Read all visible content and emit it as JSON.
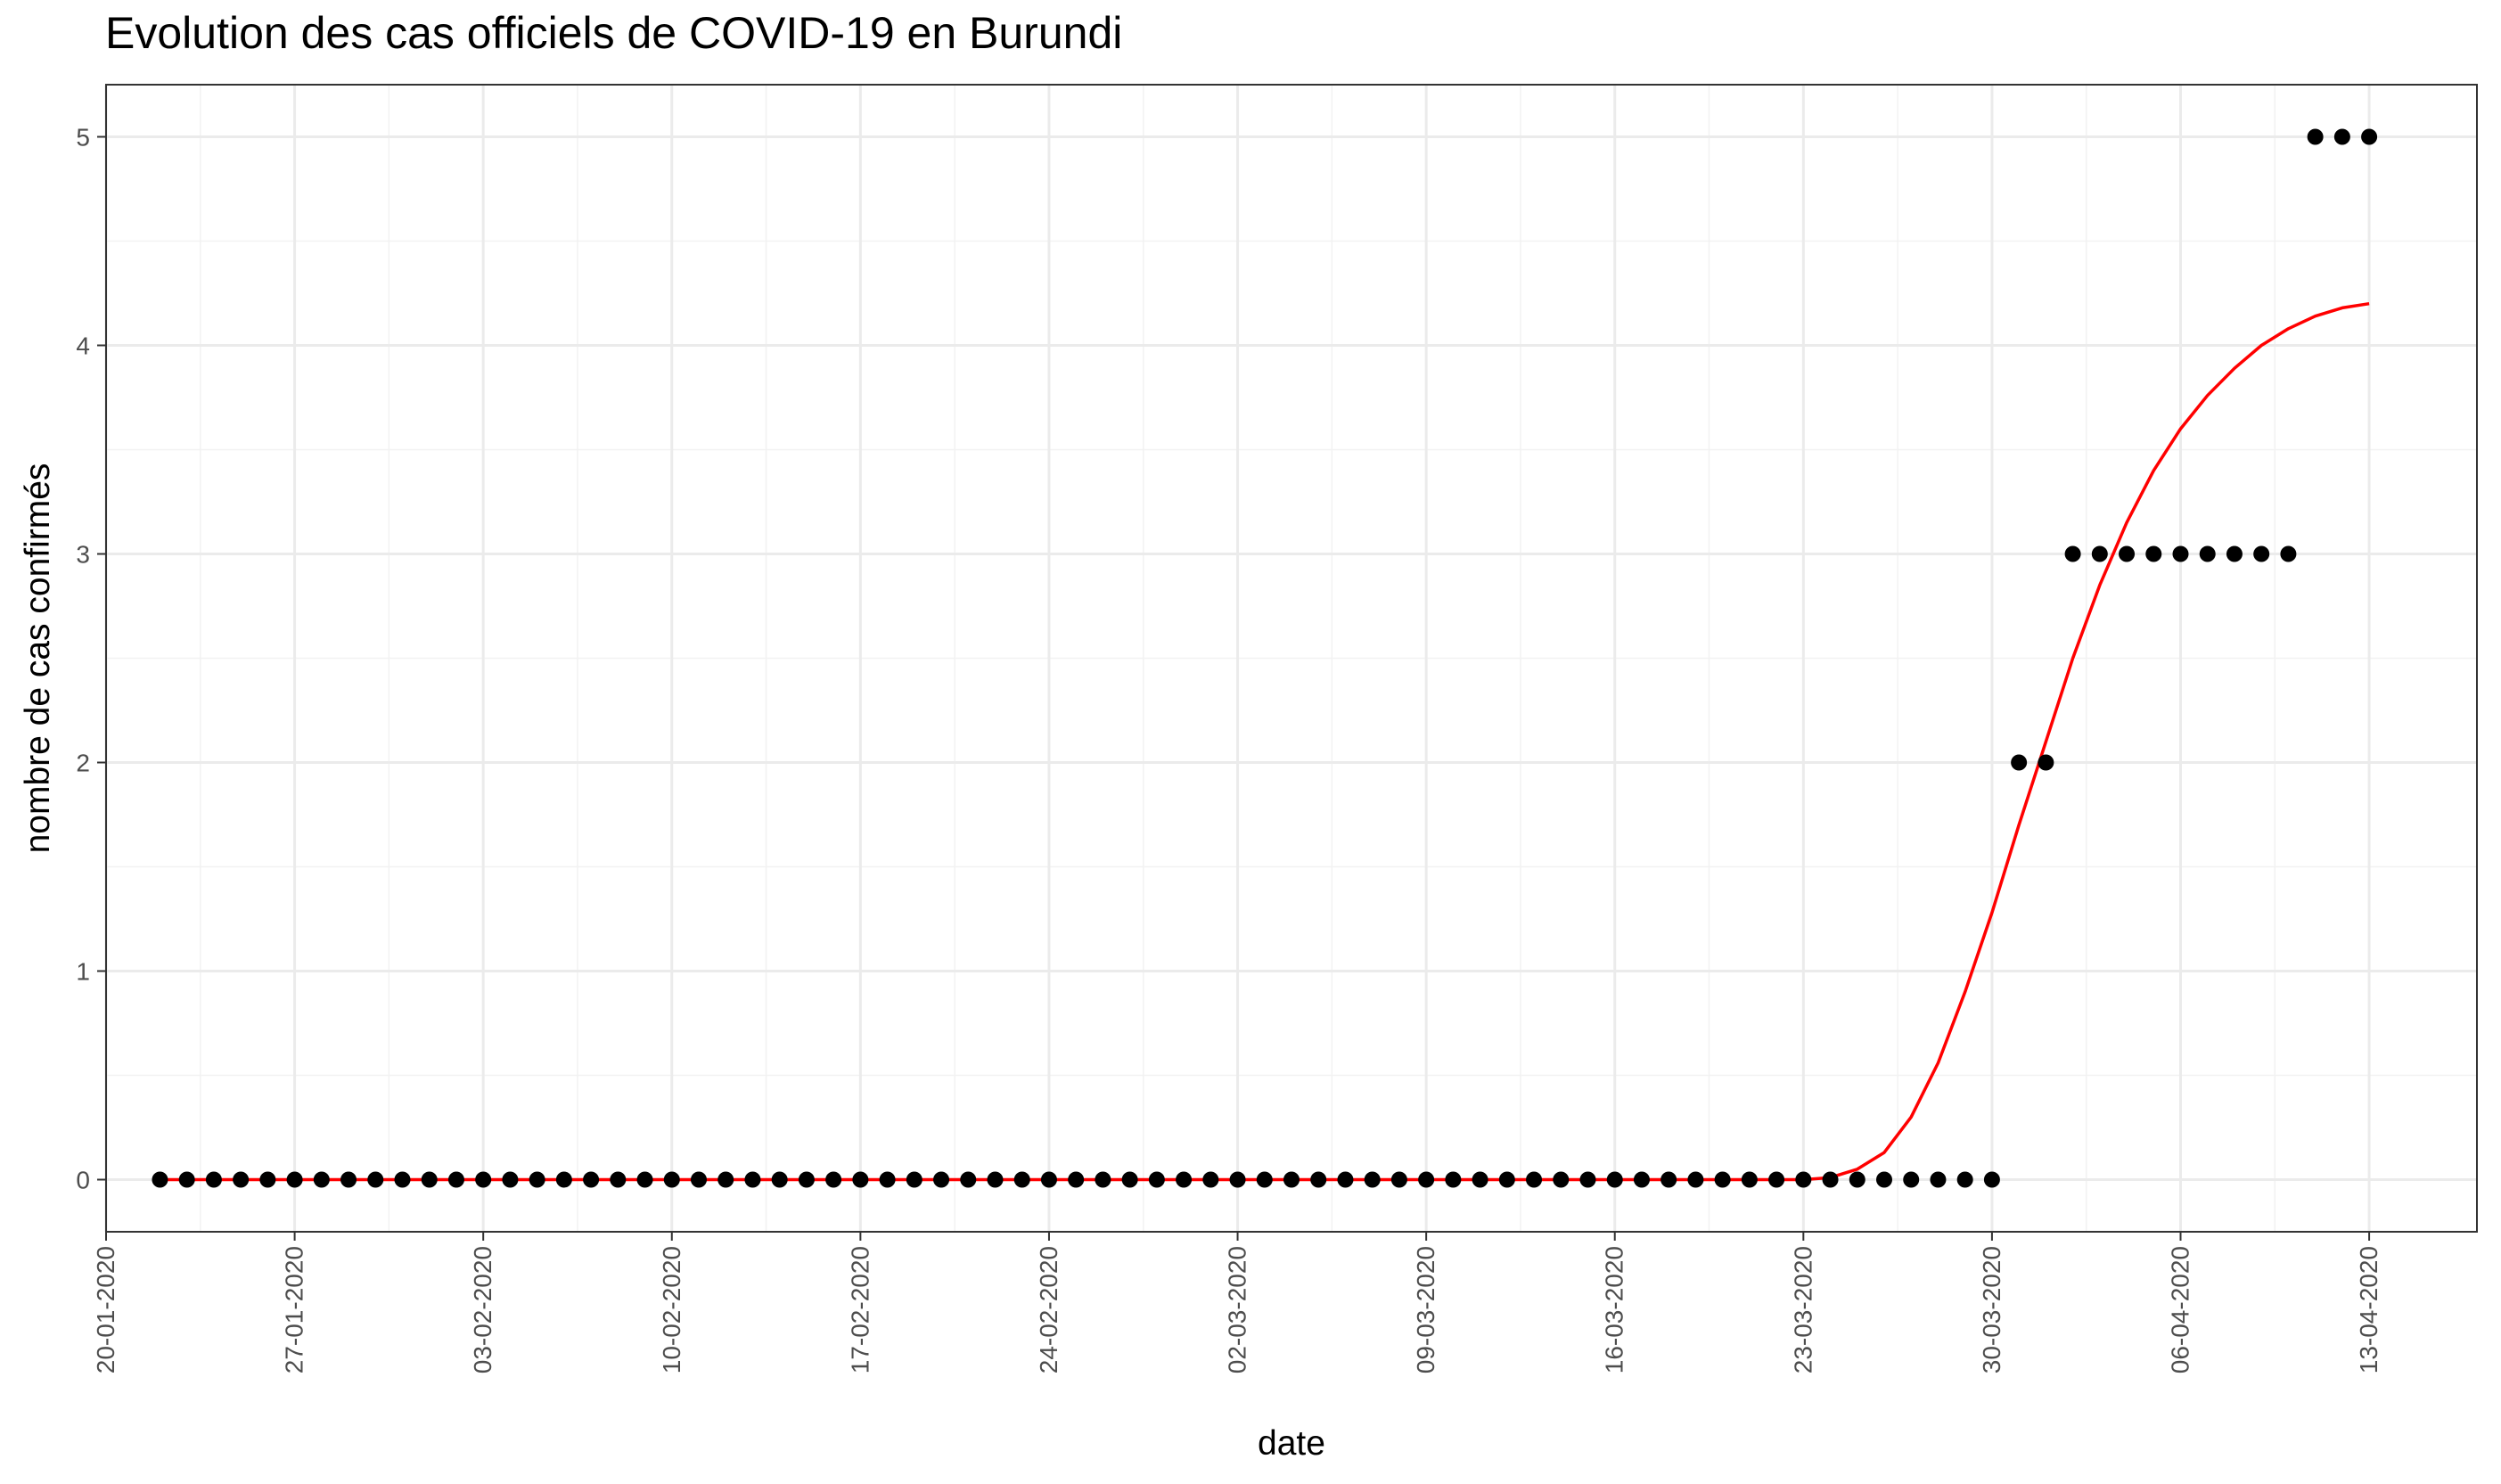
{
  "chart_data": {
    "type": "scatter",
    "title": "Evolution des cas officiels de COVID-19 en Burundi",
    "xlabel": "date",
    "ylabel": "nombre de cas confirmés",
    "x_type": "date",
    "x_tick_format": "DD-MM-YYYY",
    "xlim": [
      "2020-01-20",
      "2020-04-17"
    ],
    "ylim": [
      -0.25,
      5.25
    ],
    "x_ticks": [
      "20-01-2020",
      "27-01-2020",
      "03-02-2020",
      "10-02-2020",
      "17-02-2020",
      "24-02-2020",
      "02-03-2020",
      "09-03-2020",
      "16-03-2020",
      "23-03-2020",
      "30-03-2020",
      "06-04-2020",
      "13-04-2020"
    ],
    "y_ticks": [
      "0",
      "1",
      "2",
      "3",
      "4",
      "5"
    ],
    "grid": true,
    "theme": "bw",
    "point_color": "#000000",
    "line_color": "#ff0000",
    "series": [
      {
        "kind": "points",
        "start_date": "2020-01-22",
        "values": [
          0,
          0,
          0,
          0,
          0,
          0,
          0,
          0,
          0,
          0,
          0,
          0,
          0,
          0,
          0,
          0,
          0,
          0,
          0,
          0,
          0,
          0,
          0,
          0,
          0,
          0,
          0,
          0,
          0,
          0,
          0,
          0,
          0,
          0,
          0,
          0,
          0,
          0,
          0,
          0,
          0,
          0,
          0,
          0,
          0,
          0,
          0,
          0,
          0,
          0,
          0,
          0,
          0,
          0,
          0,
          0,
          0,
          0,
          0,
          0,
          0,
          0,
          0,
          0,
          0,
          0,
          0,
          0,
          0,
          2,
          2,
          3,
          3,
          3,
          3,
          3,
          3,
          3,
          3,
          3,
          5,
          5,
          5
        ]
      },
      {
        "kind": "line",
        "start_date": "2020-01-22",
        "values": [
          0,
          0,
          0,
          0,
          0,
          0,
          0,
          0,
          0,
          0,
          0,
          0,
          0,
          0,
          0,
          0,
          0,
          0,
          0,
          0,
          0,
          0,
          0,
          0,
          0,
          0,
          0,
          0,
          0,
          0,
          0,
          0,
          0,
          0,
          0,
          0,
          0,
          0,
          0,
          0,
          0,
          0,
          0,
          0,
          0,
          0,
          0,
          0,
          0,
          0,
          0,
          0,
          0,
          0,
          0,
          0,
          0,
          0,
          0,
          0,
          0,
          0,
          0.01,
          0.05,
          0.13,
          0.3,
          0.56,
          0.9,
          1.28,
          1.7,
          2.1,
          2.5,
          2.85,
          3.15,
          3.4,
          3.6,
          3.76,
          3.89,
          4.0,
          4.08,
          4.14,
          4.18,
          4.2
        ]
      }
    ]
  }
}
